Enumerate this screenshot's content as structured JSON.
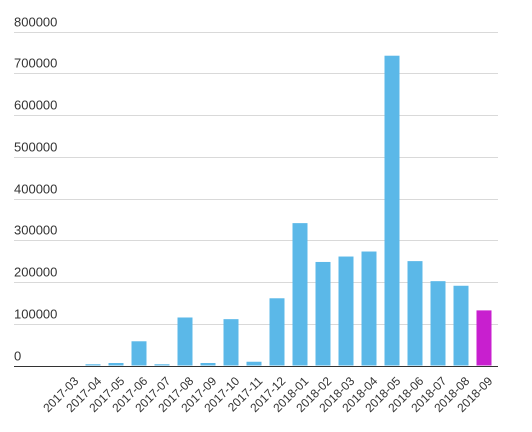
{
  "chart_data": {
    "type": "bar",
    "categories": [
      "2017-03",
      "2017-04",
      "2017-05",
      "2017-06",
      "2017-07",
      "2017-08",
      "2017-09",
      "2017-10",
      "2017-11",
      "2017-12",
      "2018-01",
      "2018-02",
      "2018-03",
      "2018-04",
      "2018-05",
      "2018-06",
      "2018-07",
      "2018-08",
      "2018-09"
    ],
    "values": [
      0,
      3000,
      6000,
      58000,
      3000,
      115000,
      6000,
      111000,
      9000,
      161000,
      341000,
      248000,
      261000,
      273000,
      742000,
      250000,
      202000,
      191000,
      132000
    ],
    "ylim": [
      0,
      800000
    ],
    "yticks": [
      0,
      100000,
      200000,
      300000,
      400000,
      500000,
      600000,
      700000,
      800000
    ],
    "ytick_labels": [
      "0",
      "100000",
      "200000",
      "300000",
      "400000",
      "500000",
      "600000",
      "700000",
      "800000"
    ],
    "grid": true,
    "colors": {
      "bar": "#5BB8E8",
      "highlight": "#C81FCF",
      "highlight_category": "2018-09"
    }
  }
}
